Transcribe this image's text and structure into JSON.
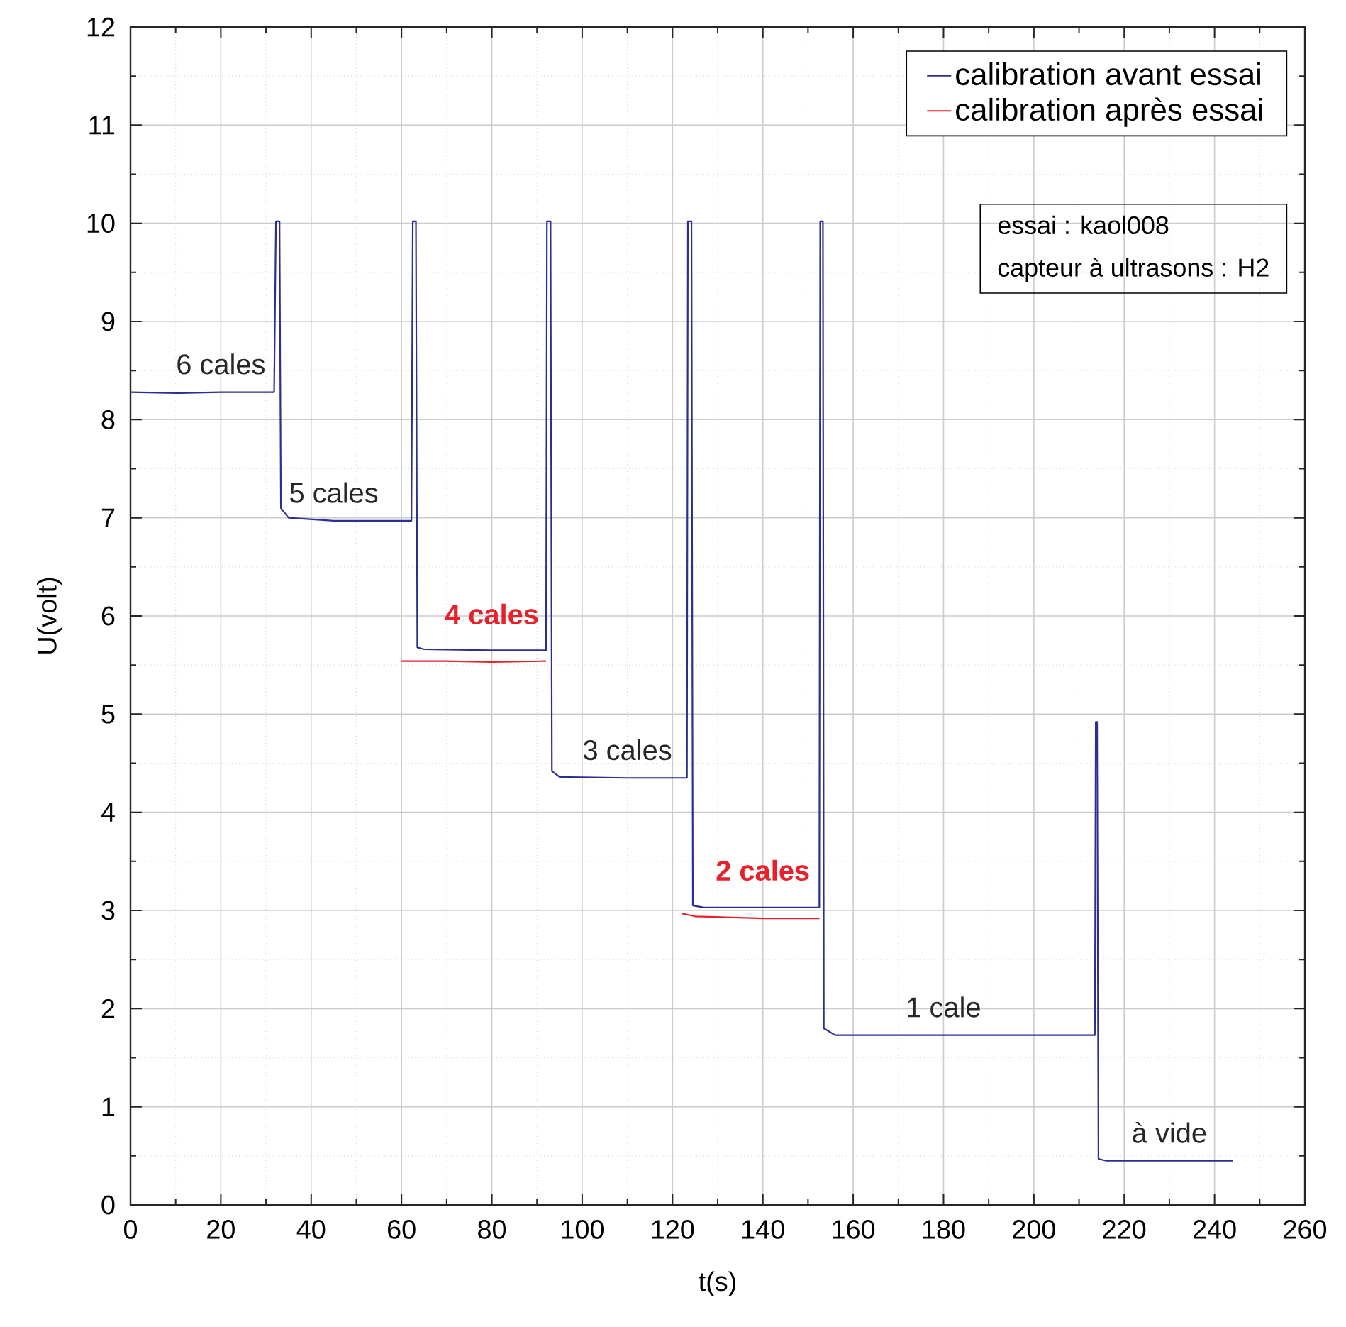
{
  "chart_data": {
    "type": "line",
    "xlabel": "t(s)",
    "ylabel": "U(volt)",
    "xlim": [
      0,
      260
    ],
    "xticks": [
      0,
      20,
      40,
      60,
      80,
      100,
      120,
      140,
      160,
      180,
      200,
      220,
      240,
      260
    ],
    "ylim": [
      0,
      12
    ],
    "yticks": [
      0,
      1,
      2,
      3,
      4,
      5,
      6,
      7,
      8,
      9,
      10,
      11,
      12
    ],
    "grid": true,
    "legend": "top right",
    "series": [
      {
        "name": "calibration avant essai",
        "color": "#2b2f8f",
        "x": [
          0,
          10,
          20,
          31.8,
          32.2,
          33.0,
          33.3,
          35,
          45,
          55,
          62.2,
          62.5,
          63.2,
          63.5,
          65,
          80,
          92.0,
          92.2,
          93.0,
          93.3,
          95,
          110,
          123.2,
          123.4,
          124.2,
          124.5,
          127,
          140,
          152.5,
          152.7,
          153.3,
          153.5,
          156,
          180,
          213.5,
          213.7,
          214.0,
          214.3,
          216,
          230,
          244
        ],
        "values": [
          8.28,
          8.27,
          8.28,
          8.28,
          10.02,
          10.02,
          7.1,
          7.0,
          6.97,
          6.97,
          6.97,
          10.02,
          10.02,
          5.68,
          5.66,
          5.65,
          5.65,
          10.02,
          10.02,
          4.42,
          4.36,
          4.35,
          4.35,
          10.02,
          10.02,
          3.05,
          3.03,
          3.03,
          3.03,
          10.02,
          10.02,
          1.8,
          1.73,
          1.73,
          1.73,
          4.92,
          4.92,
          0.47,
          0.45,
          0.45,
          0.45
        ]
      },
      {
        "name": "calibration après essai",
        "color": "#e8202a",
        "x": [
          60,
          70,
          80,
          92,
          null,
          122,
          125,
          140,
          152.5
        ],
        "values": [
          5.54,
          5.54,
          5.53,
          5.54,
          null,
          2.97,
          2.94,
          2.92,
          2.92
        ]
      }
    ],
    "annotations": [
      {
        "text": "6 cales",
        "x": 20,
        "y": 8.28
      },
      {
        "text": "5 cales",
        "x": 45,
        "y": 6.97
      },
      {
        "text": "**4 cales**",
        "x": 80,
        "y": 5.53
      },
      {
        "text": "3 cales",
        "x": 110,
        "y": 4.35
      },
      {
        "text": "**2 cales**",
        "x": 140,
        "y": 2.92
      },
      {
        "text": "1 cale",
        "x": 180,
        "y": 1.73
      },
      {
        "text": "à vide",
        "x": 230,
        "y": 0.45
      },
      "essai : kaol008",
      "capteur à ultrasons : H2"
    ]
  }
}
